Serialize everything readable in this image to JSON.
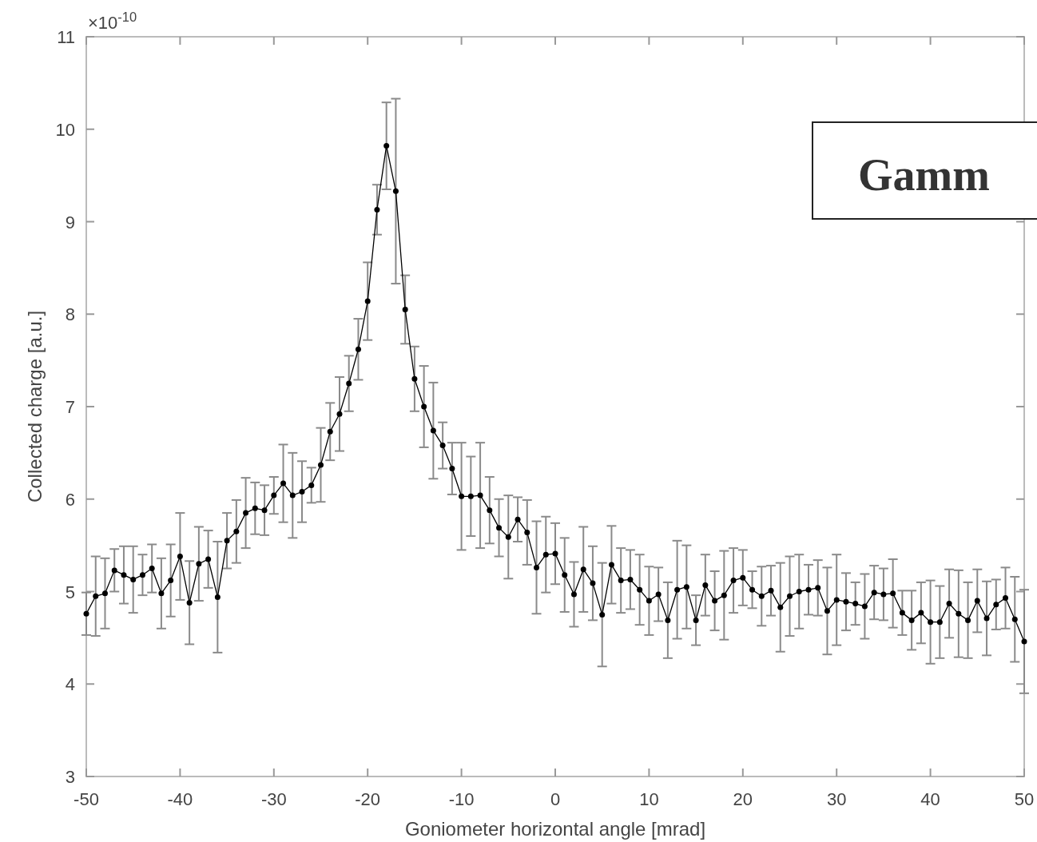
{
  "chart_data": {
    "type": "line",
    "xlabel": "Goniometer horizontal  angle [mrad]",
    "ylabel": "Collected charge [a.u.]",
    "annotations": [
      "×10$^{-10}$",
      "Gamm"
    ],
    "xlim": [
      -50,
      50
    ],
    "xticks": [
      -50,
      -40,
      -30,
      -20,
      -10,
      0,
      10,
      20,
      30,
      40,
      50
    ],
    "ylim": [
      3,
      11
    ],
    "yticks": [
      3,
      4,
      5,
      6,
      7,
      8,
      9,
      10,
      11
    ],
    "grid": false,
    "marker": "circle",
    "line_style": "solid",
    "series": [
      {
        "color": "#000000",
        "x": [
          -50,
          -49,
          -48,
          -47,
          -46,
          -45,
          -44,
          -43,
          -42,
          -41,
          -40,
          -39,
          -38,
          -37,
          -36,
          -35,
          -34,
          -33,
          -32,
          -31,
          -30,
          -29,
          -28,
          -27,
          -26,
          -25,
          -24,
          -23,
          -22,
          -21,
          -20,
          -19,
          -18,
          -17,
          -16,
          -15,
          -14,
          -13,
          -12,
          -11,
          -10,
          -9,
          -8,
          -7,
          -6,
          -5,
          -4,
          -3,
          -2,
          -1,
          0,
          1,
          2,
          3,
          4,
          5,
          6,
          7,
          8,
          9,
          10,
          11,
          12,
          13,
          14,
          15,
          16,
          17,
          18,
          19,
          20,
          21,
          22,
          23,
          24,
          25,
          26,
          27,
          28,
          29,
          30,
          31,
          32,
          33,
          34,
          35,
          36,
          37,
          38,
          39,
          40,
          41,
          42,
          43,
          44,
          45,
          46,
          47,
          48,
          49,
          50
        ],
        "values": [
          4.76,
          4.95,
          4.98,
          5.23,
          5.18,
          5.13,
          5.18,
          5.25,
          4.98,
          5.12,
          5.38,
          4.88,
          5.3,
          5.35,
          4.94,
          5.55,
          5.65,
          5.85,
          5.9,
          5.88,
          6.04,
          6.17,
          6.04,
          6.08,
          6.15,
          6.37,
          6.73,
          6.92,
          7.25,
          7.62,
          8.14,
          9.13,
          9.82,
          9.33,
          8.05,
          7.3,
          7.0,
          6.74,
          6.58,
          6.33,
          6.03,
          6.03,
          6.04,
          5.88,
          5.69,
          5.59,
          5.78,
          5.64,
          5.26,
          5.4,
          5.41,
          5.18,
          4.97,
          5.24,
          5.09,
          4.75,
          5.29,
          5.12,
          5.13,
          5.02,
          4.9,
          4.97,
          4.69,
          5.02,
          5.05,
          4.69,
          5.07,
          4.9,
          4.96,
          5.12,
          5.15,
          5.02,
          4.95,
          5.01,
          4.83,
          4.95,
          5.0,
          5.02,
          5.04,
          4.79,
          4.91,
          4.89,
          4.87,
          4.84,
          4.99,
          4.97,
          4.98,
          4.77,
          4.69,
          4.77,
          4.67,
          4.67,
          4.87,
          4.76,
          4.69,
          4.9,
          4.71,
          4.86,
          4.93,
          4.7,
          4.46
        ],
        "errors": [
          0.23,
          0.43,
          0.38,
          0.23,
          0.31,
          0.36,
          0.22,
          0.26,
          0.38,
          0.39,
          0.47,
          0.45,
          0.4,
          0.31,
          0.6,
          0.3,
          0.34,
          0.38,
          0.28,
          0.27,
          0.2,
          0.42,
          0.46,
          0.33,
          0.19,
          0.4,
          0.31,
          0.4,
          0.3,
          0.33,
          0.42,
          0.27,
          0.47,
          1.0,
          0.37,
          0.35,
          0.44,
          0.52,
          0.25,
          0.28,
          0.58,
          0.43,
          0.57,
          0.36,
          0.31,
          0.45,
          0.24,
          0.35,
          0.5,
          0.41,
          0.33,
          0.4,
          0.35,
          0.46,
          0.4,
          0.56,
          0.42,
          0.35,
          0.32,
          0.38,
          0.37,
          0.29,
          0.41,
          0.53,
          0.45,
          0.27,
          0.33,
          0.32,
          0.48,
          0.35,
          0.3,
          0.2,
          0.32,
          0.27,
          0.48,
          0.43,
          0.4,
          0.27,
          0.3,
          0.47,
          0.49,
          0.31,
          0.23,
          0.35,
          0.29,
          0.28,
          0.37,
          0.24,
          0.32,
          0.33,
          0.45,
          0.39,
          0.37,
          0.47,
          0.41,
          0.34,
          0.4,
          0.27,
          0.33,
          0.46,
          0.56
        ]
      }
    ]
  }
}
